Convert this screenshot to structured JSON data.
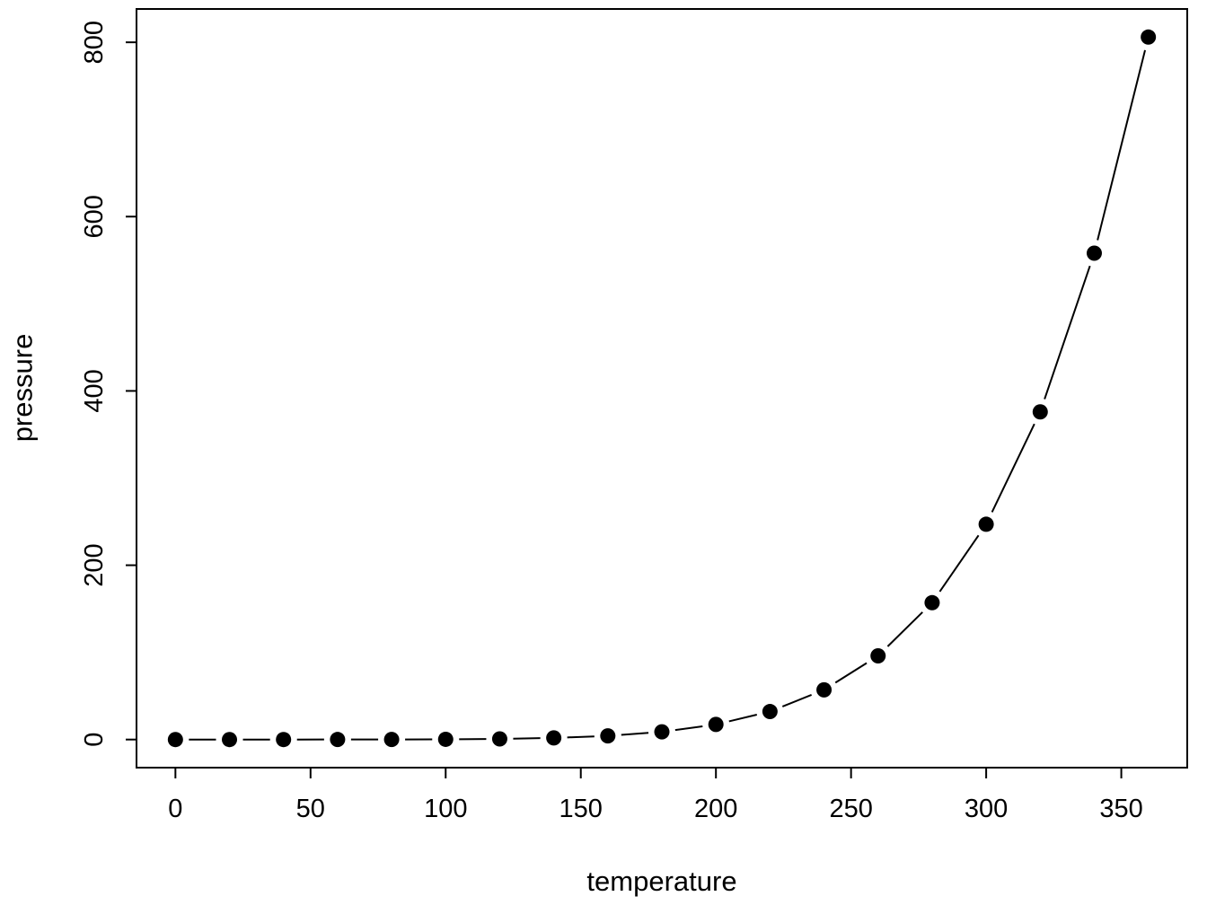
{
  "chart_data": {
    "type": "scatter",
    "subtype": "points-with-line-segments",
    "title": "",
    "xlabel": "temperature",
    "ylabel": "pressure",
    "x": [
      0,
      20,
      40,
      60,
      80,
      100,
      120,
      140,
      160,
      180,
      200,
      220,
      240,
      260,
      280,
      300,
      320,
      340,
      360
    ],
    "y": [
      0.0002,
      0.0012,
      0.006,
      0.03,
      0.09,
      0.27,
      0.75,
      1.85,
      4.2,
      8.8,
      17.3,
      32.1,
      57.0,
      96.0,
      157.0,
      247.0,
      376.0,
      558.0,
      806.0
    ],
    "x_ticks": [
      0,
      50,
      100,
      150,
      200,
      250,
      300,
      350
    ],
    "y_ticks": [
      0,
      200,
      400,
      600,
      800
    ],
    "xlim": [
      0,
      360
    ],
    "ylim": [
      0,
      806
    ],
    "grid": false,
    "legend": null,
    "style": {
      "background": "#ffffff",
      "foreground": "#000000",
      "point_color": "#000000",
      "line_color": "#000000"
    }
  }
}
